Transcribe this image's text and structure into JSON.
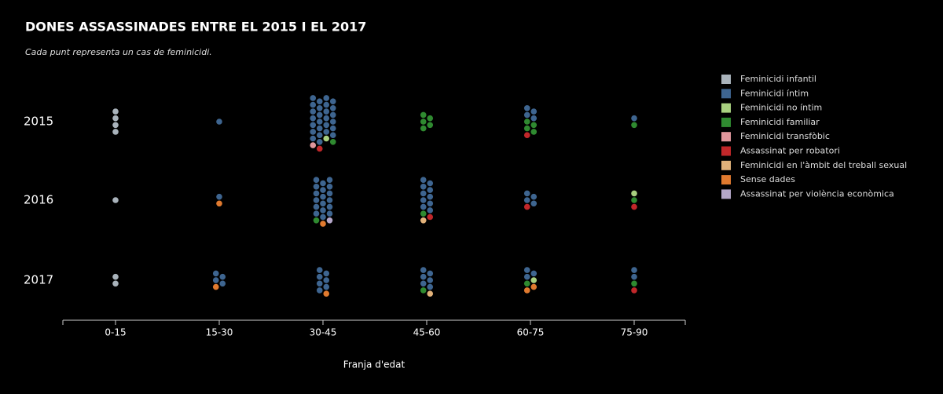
{
  "chart_data": {
    "type": "beeswarm",
    "title": "DONES ASSASSINADES ENTRE EL 2015 I EL 2017",
    "subtitle": "Cada punt representa un cas de feminicidi.",
    "x_label": "Franja d'edat",
    "categories": [
      "0-15",
      "15-30",
      "30-45",
      "45-60",
      "60-75",
      "75-90"
    ],
    "rows": [
      "2015",
      "2016",
      "2017"
    ],
    "series": [
      {
        "name": "Feminicidi infantil",
        "color": "#a9b3bb",
        "values": [
          [
            4,
            0,
            0,
            0,
            0,
            0
          ],
          [
            1,
            0,
            0,
            0,
            0,
            0
          ],
          [
            2,
            0,
            0,
            0,
            0,
            0
          ]
        ]
      },
      {
        "name": "Feminicidi íntim",
        "color": "#3e6590",
        "values": [
          [
            0,
            1,
            26,
            0,
            4,
            1
          ],
          [
            0,
            1,
            18,
            10,
            4,
            0
          ],
          [
            0,
            4,
            7,
            6,
            3,
            2
          ]
        ]
      },
      {
        "name": "Feminicidi no íntim",
        "color": "#a8d07f",
        "values": [
          [
            0,
            0,
            1,
            0,
            0,
            0
          ],
          [
            0,
            0,
            0,
            0,
            0,
            1
          ],
          [
            0,
            0,
            0,
            0,
            1,
            0
          ]
        ]
      },
      {
        "name": "Feminicidi familiar",
        "color": "#2f8a30",
        "values": [
          [
            0,
            0,
            1,
            5,
            4,
            1
          ],
          [
            0,
            0,
            1,
            1,
            0,
            1
          ],
          [
            0,
            0,
            0,
            1,
            1,
            1
          ]
        ]
      },
      {
        "name": "Feminicidi transfòbic",
        "color": "#e0979c",
        "values": [
          [
            0,
            0,
            1,
            0,
            0,
            0
          ],
          [
            0,
            0,
            0,
            0,
            0,
            0
          ],
          [
            0,
            0,
            0,
            0,
            0,
            0
          ]
        ]
      },
      {
        "name": "Assassinat per robatori",
        "color": "#c1272a",
        "values": [
          [
            0,
            0,
            1,
            0,
            1,
            0
          ],
          [
            0,
            0,
            0,
            1,
            1,
            1
          ],
          [
            0,
            0,
            0,
            0,
            0,
            1
          ]
        ]
      },
      {
        "name": "Feminicidi en l'àmbit del treball sexual",
        "color": "#e2b27a",
        "values": [
          [
            0,
            0,
            0,
            0,
            0,
            0
          ],
          [
            0,
            0,
            0,
            1,
            0,
            0
          ],
          [
            0,
            0,
            0,
            1,
            0,
            0
          ]
        ]
      },
      {
        "name": "Sense dades",
        "color": "#e07a2f",
        "values": [
          [
            0,
            0,
            0,
            0,
            0,
            0
          ],
          [
            0,
            1,
            1,
            0,
            0,
            0
          ],
          [
            0,
            1,
            1,
            0,
            2,
            0
          ]
        ]
      },
      {
        "name": "Assassinat per violència econòmica",
        "color": "#b5a7c9",
        "values": [
          [
            0,
            0,
            0,
            0,
            0,
            0
          ],
          [
            0,
            0,
            1,
            0,
            0,
            0
          ],
          [
            0,
            0,
            0,
            0,
            0,
            0
          ]
        ]
      }
    ]
  }
}
